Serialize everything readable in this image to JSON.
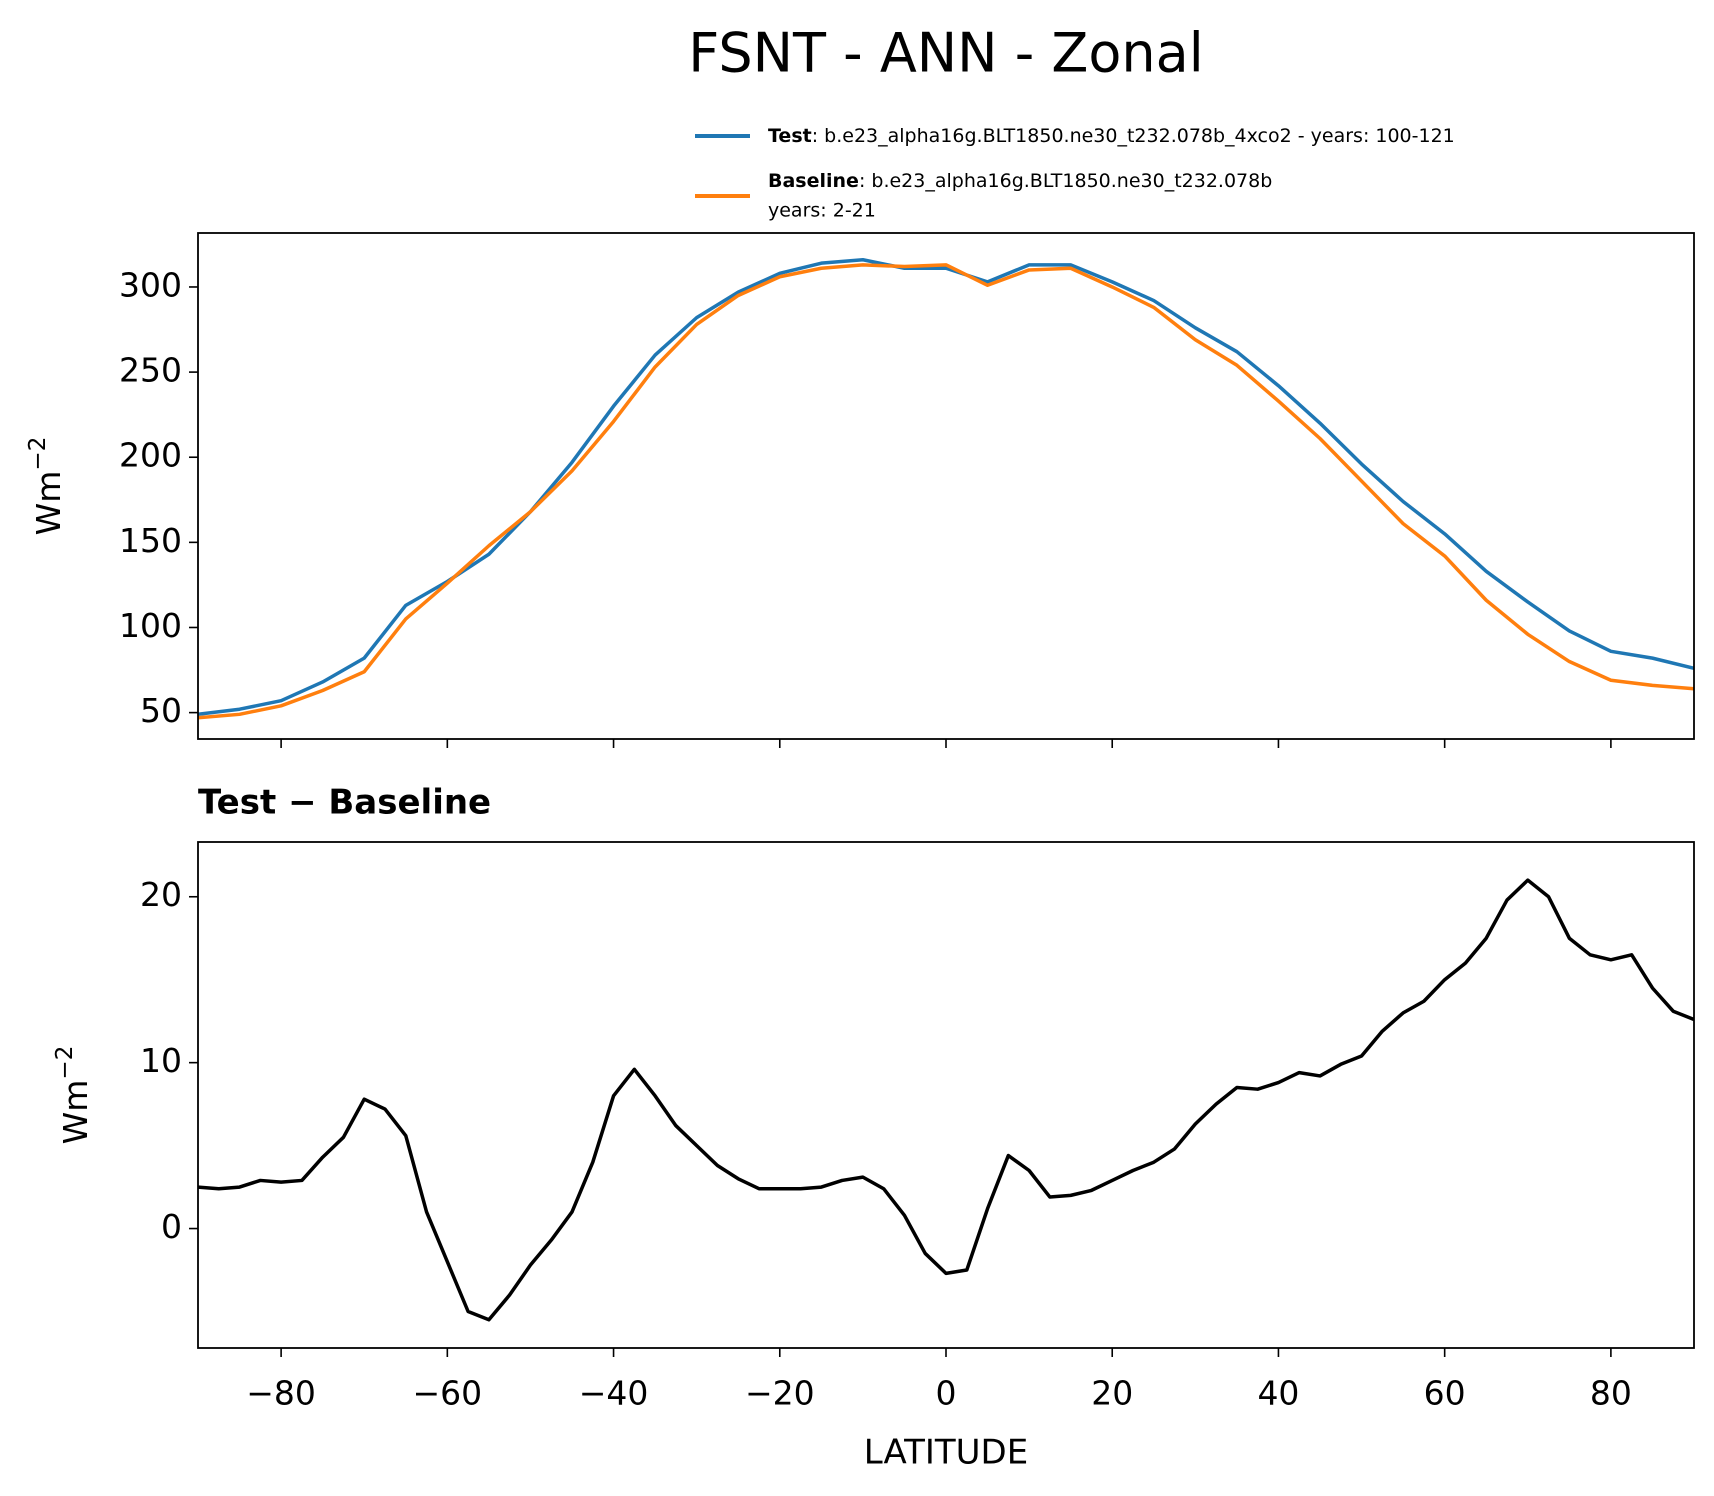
{
  "chart_data": [
    {
      "type": "line",
      "title": "FSNT - ANN - Zonal",
      "ylabel": [
        "Wm",
        "−2"
      ],
      "x": [
        -90,
        -85,
        -80,
        -75,
        -70,
        -65,
        -60,
        -55,
        -50,
        -45,
        -40,
        -35,
        -30,
        -25,
        -20,
        -15,
        -10,
        -5,
        0,
        5,
        10,
        15,
        20,
        25,
        30,
        35,
        40,
        45,
        50,
        55,
        60,
        65,
        70,
        75,
        80,
        85,
        90
      ],
      "series": [
        {
          "name": "Test",
          "description": [
            ": b.e23_alpha16g.BLT1850.ne30_t232.078b_4xco2 - years: 100-121"
          ],
          "color": "#1f77b4",
          "values": [
            49,
            52,
            57,
            68,
            82,
            113,
            127,
            143,
            168,
            197,
            230,
            260,
            282,
            297,
            308,
            314,
            316,
            311,
            311,
            303,
            313,
            313,
            303,
            292,
            276,
            262,
            242,
            220,
            196,
            174,
            155,
            133,
            115,
            98,
            86,
            82,
            76
          ]
        },
        {
          "name": "Baseline",
          "description": [
            ": b.e23_alpha16g.BLT1850.ne30_t232.078b",
            "years: 2-21"
          ],
          "color": "#ff7f0e",
          "values": [
            47,
            49,
            54,
            63,
            74,
            105,
            126,
            148,
            168,
            192,
            221,
            253,
            278,
            295,
            306,
            311,
            313,
            312,
            313,
            301,
            310,
            311,
            300,
            288,
            269,
            254,
            233,
            211,
            186,
            161,
            142,
            116,
            96,
            80,
            69,
            66,
            64
          ]
        }
      ],
      "xlim": [
        -90,
        90
      ],
      "xticks": [
        -80,
        -60,
        -40,
        -20,
        0,
        20,
        40,
        60,
        80
      ],
      "show_xtick_labels": false,
      "ylim": [
        34.5,
        331.7
      ],
      "yticks": [
        50,
        100,
        150,
        200,
        250,
        300
      ]
    },
    {
      "type": "line",
      "title": "Test − Baseline",
      "ylabel": [
        "Wm",
        "−2"
      ],
      "xlabel": "LATITUDE",
      "x": [
        -90,
        -87.5,
        -85,
        -82.5,
        -80,
        -77.5,
        -75,
        -72.5,
        -70,
        -67.5,
        -65,
        -62.5,
        -60,
        -57.5,
        -55,
        -52.5,
        -50,
        -47.5,
        -45,
        -42.5,
        -40,
        -37.5,
        -35,
        -32.5,
        -30,
        -27.5,
        -25,
        -22.5,
        -20,
        -17.5,
        -15,
        -12.5,
        -10,
        -7.5,
        -5,
        -2.5,
        0,
        2.5,
        5,
        7.5,
        10,
        12.5,
        15,
        17.5,
        20,
        22.5,
        25,
        27.5,
        30,
        32.5,
        35,
        37.5,
        40,
        42.5,
        45,
        47.5,
        50,
        52.5,
        55,
        57.5,
        60,
        62.5,
        65,
        67.5,
        70,
        72.5,
        75,
        77.5,
        80,
        82.5,
        85,
        87.5,
        90
      ],
      "series": [
        {
          "color": "#000000",
          "values": [
            2.5,
            2.4,
            2.5,
            2.9,
            2.8,
            2.9,
            4.3,
            5.5,
            7.8,
            7.2,
            5.6,
            1.0,
            -2.0,
            -5.0,
            -5.5,
            -4.0,
            -2.2,
            -0.7,
            1.0,
            4.0,
            8.0,
            9.6,
            8.0,
            6.2,
            5.0,
            3.8,
            3.0,
            2.4,
            2.4,
            2.4,
            2.5,
            2.9,
            3.1,
            2.4,
            0.8,
            -1.5,
            -2.7,
            -2.5,
            1.2,
            4.4,
            3.5,
            1.9,
            2.0,
            2.3,
            2.9,
            3.5,
            4.0,
            4.8,
            6.3,
            7.5,
            8.5,
            8.4,
            8.8,
            9.4,
            9.2,
            9.9,
            10.4,
            11.9,
            13.0,
            13.7,
            15.0,
            16.0,
            17.5,
            19.8,
            21.0,
            20.0,
            17.5,
            16.5,
            16.2,
            16.5,
            14.5,
            13.1,
            12.6
          ]
        }
      ],
      "xlim": [
        -90,
        90
      ],
      "xticks": [
        {
          "value": -80,
          "label": "−80"
        },
        {
          "value": -60,
          "label": "−60"
        },
        {
          "value": -40,
          "label": "−40"
        },
        {
          "value": -20,
          "label": "−20"
        },
        0,
        20,
        40,
        60,
        80
      ],
      "show_xtick_labels": true,
      "ylim": [
        -7.2,
        23.3
      ],
      "yticks": [
        0,
        10,
        20
      ]
    }
  ]
}
